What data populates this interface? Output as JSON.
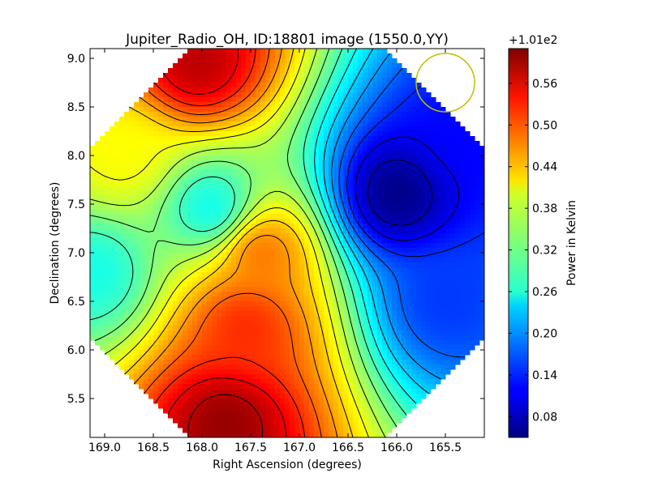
{
  "chart_data": {
    "type": "heatmap",
    "title": "Jupiter_Radio_OH, ID:18801 image (1550.0,YY)",
    "xlabel": "Right Ascension (degrees)",
    "ylabel": "Declination (degrees)",
    "xlim": [
      169.15,
      165.1
    ],
    "ylim": [
      5.1,
      9.1
    ],
    "x_ticks": [
      169.0,
      168.5,
      168.0,
      167.5,
      167.0,
      166.5,
      166.0,
      165.5
    ],
    "x_tick_labels": [
      "169.0",
      "168.5",
      "168.0",
      "167.5",
      "167.0",
      "166.5",
      "166.0",
      "165.5"
    ],
    "y_ticks": [
      5.5,
      6.0,
      6.5,
      7.0,
      7.5,
      8.0,
      8.5,
      9.0
    ],
    "y_tick_labels": [
      "5.5",
      "6.0",
      "6.5",
      "7.0",
      "7.5",
      "8.0",
      "8.5",
      "9.0"
    ],
    "colormap": "jet",
    "grid": false,
    "colorbar": {
      "label": "Power in Kelvin",
      "offset_text": "+1.01e2",
      "range": [
        0.05,
        0.61
      ],
      "ticks": [
        0.08,
        0.14,
        0.2,
        0.26,
        0.32,
        0.38,
        0.44,
        0.5,
        0.56
      ],
      "tick_labels": [
        "0.08",
        "0.14",
        "0.20",
        "0.26",
        "0.32",
        "0.38",
        "0.44",
        "0.50",
        "0.56"
      ]
    },
    "sources": [
      {
        "ra": 167.75,
        "dec": 5.25,
        "value": 0.6
      },
      {
        "ra": 168.05,
        "dec": 8.95,
        "value": 0.58
      },
      {
        "ra": 167.55,
        "dec": 6.25,
        "value": 0.52
      },
      {
        "ra": 167.4,
        "dec": 7.0,
        "value": 0.48
      },
      {
        "ra": 166.0,
        "dec": 7.6,
        "value": 0.05
      },
      {
        "ra": 165.3,
        "dec": 8.2,
        "value": 0.12
      },
      {
        "ra": 165.5,
        "dec": 6.5,
        "value": 0.15
      },
      {
        "ra": 167.9,
        "dec": 7.45,
        "value": 0.26
      },
      {
        "ra": 169.1,
        "dec": 6.8,
        "value": 0.27
      },
      {
        "ra": 168.8,
        "dec": 8.0,
        "value": 0.4
      }
    ],
    "beam_circle": {
      "ra": 165.5,
      "dec": 8.75,
      "radius_deg": 0.3,
      "color": "#bfbf00"
    }
  }
}
